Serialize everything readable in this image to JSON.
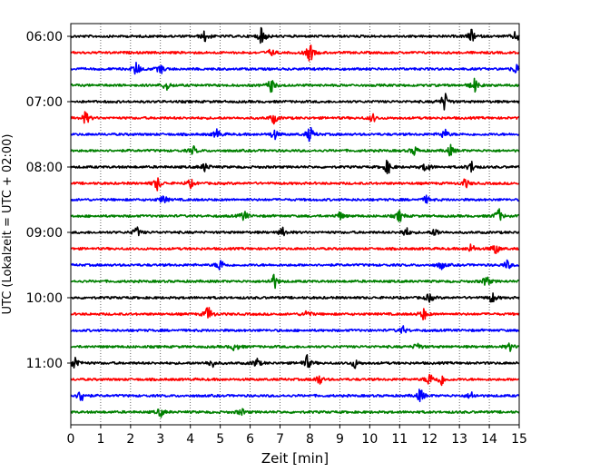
{
  "chart_data": {
    "type": "line",
    "title": "",
    "xlabel": "Zeit  [min]",
    "ylabel": "UTC (Lokalzeit = UTC + 02:00)",
    "xlim": [
      0,
      15
    ],
    "x_ticks": [
      0,
      1,
      2,
      3,
      4,
      5,
      6,
      7,
      8,
      9,
      10,
      11,
      12,
      13,
      14,
      15
    ],
    "vertical_grid": true,
    "grid_style": "dotted",
    "trace_interval_min": 15,
    "trace_colors": [
      "#000000",
      "#ff0000",
      "#0000ff",
      "#008000"
    ],
    "y_ticks": [
      "06:00",
      "07:00",
      "08:00",
      "09:00",
      "10:00",
      "11:00"
    ],
    "traces": [
      {
        "start": "06:00",
        "color": "#000000",
        "events": [
          [
            4.5,
            1.0
          ],
          [
            6.4,
            1.6
          ],
          [
            13.4,
            1.1
          ],
          [
            14.9,
            0.9
          ]
        ]
      },
      {
        "start": "06:15",
        "color": "#ff0000",
        "events": [
          [
            8.0,
            1.6
          ],
          [
            6.7,
            0.6
          ]
        ]
      },
      {
        "start": "06:30",
        "color": "#0000ff",
        "events": [
          [
            2.2,
            1.3
          ],
          [
            3.0,
            0.8
          ],
          [
            14.9,
            0.9
          ]
        ]
      },
      {
        "start": "06:45",
        "color": "#008000",
        "events": [
          [
            3.2,
            0.9
          ],
          [
            6.7,
            1.2
          ],
          [
            13.5,
            1.2
          ]
        ]
      },
      {
        "start": "07:00",
        "color": "#000000",
        "events": [
          [
            12.5,
            1.6
          ]
        ]
      },
      {
        "start": "07:15",
        "color": "#ff0000",
        "events": [
          [
            0.5,
            1.1
          ],
          [
            6.8,
            0.9
          ],
          [
            10.1,
            0.7
          ]
        ]
      },
      {
        "start": "07:30",
        "color": "#0000ff",
        "events": [
          [
            4.9,
            0.9
          ],
          [
            6.8,
            0.9
          ],
          [
            8.0,
            1.3
          ],
          [
            12.5,
            0.9
          ]
        ]
      },
      {
        "start": "07:45",
        "color": "#008000",
        "events": [
          [
            4.1,
            0.7
          ],
          [
            11.5,
            0.8
          ],
          [
            12.7,
            0.9
          ]
        ]
      },
      {
        "start": "08:00",
        "color": "#000000",
        "events": [
          [
            4.5,
            0.8
          ],
          [
            10.6,
            1.2
          ],
          [
            11.9,
            1.0
          ],
          [
            13.4,
            1.0
          ]
        ]
      },
      {
        "start": "08:15",
        "color": "#ff0000",
        "events": [
          [
            2.9,
            1.2
          ],
          [
            4.0,
            0.7
          ],
          [
            13.2,
            0.8
          ]
        ]
      },
      {
        "start": "08:30",
        "color": "#0000ff",
        "events": [
          [
            3.1,
            0.8
          ],
          [
            11.9,
            0.6
          ]
        ]
      },
      {
        "start": "08:45",
        "color": "#008000",
        "events": [
          [
            5.8,
            0.9
          ],
          [
            9.0,
            0.7
          ],
          [
            11.0,
            1.0
          ],
          [
            14.3,
            1.3
          ]
        ]
      },
      {
        "start": "09:00",
        "color": "#000000",
        "events": [
          [
            2.2,
            0.9
          ],
          [
            7.1,
            0.8
          ],
          [
            11.2,
            0.9
          ],
          [
            12.2,
            0.7
          ]
        ]
      },
      {
        "start": "09:15",
        "color": "#ff0000",
        "events": [
          [
            13.4,
            0.8
          ],
          [
            14.2,
            1.1
          ]
        ]
      },
      {
        "start": "09:30",
        "color": "#0000ff",
        "events": [
          [
            5.0,
            1.1
          ],
          [
            12.4,
            0.7
          ],
          [
            14.6,
            0.8
          ]
        ]
      },
      {
        "start": "09:45",
        "color": "#008000",
        "events": [
          [
            6.8,
            1.3
          ],
          [
            13.9,
            1.0
          ]
        ]
      },
      {
        "start": "10:00",
        "color": "#000000",
        "events": [
          [
            12.0,
            0.8
          ],
          [
            14.1,
            0.9
          ]
        ]
      },
      {
        "start": "10:15",
        "color": "#ff0000",
        "events": [
          [
            4.6,
            1.4
          ],
          [
            7.9,
            0.7
          ],
          [
            11.8,
            1.0
          ]
        ]
      },
      {
        "start": "10:30",
        "color": "#0000ff",
        "events": [
          [
            11.1,
            0.7
          ]
        ]
      },
      {
        "start": "10:45",
        "color": "#008000",
        "events": [
          [
            5.5,
            0.8
          ],
          [
            11.6,
            0.7
          ],
          [
            14.7,
            0.7
          ]
        ]
      },
      {
        "start": "11:00",
        "color": "#000000",
        "events": [
          [
            0.15,
            1.3
          ],
          [
            4.7,
            0.8
          ],
          [
            6.2,
            0.9
          ],
          [
            7.9,
            1.3
          ],
          [
            9.5,
            0.8
          ]
        ]
      },
      {
        "start": "11:15",
        "color": "#ff0000",
        "events": [
          [
            8.3,
            0.9
          ],
          [
            12.0,
            1.2
          ],
          [
            12.4,
            1.0
          ]
        ]
      },
      {
        "start": "11:30",
        "color": "#0000ff",
        "events": [
          [
            0.35,
            1.2
          ],
          [
            11.7,
            1.2
          ],
          [
            13.4,
            0.7
          ]
        ]
      },
      {
        "start": "11:45",
        "color": "#008000",
        "events": [
          [
            3.0,
            0.8
          ],
          [
            5.7,
            0.6
          ]
        ]
      }
    ]
  }
}
